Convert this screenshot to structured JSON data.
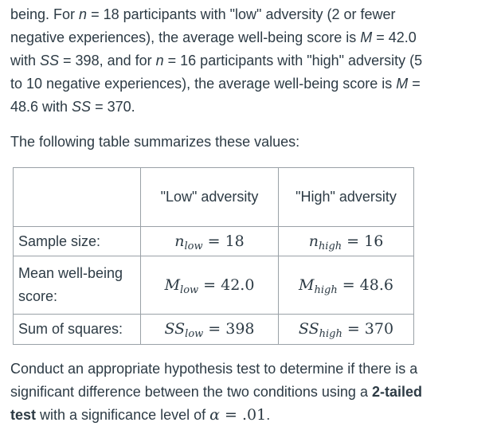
{
  "colors": {
    "text": "#2d3b45",
    "table_border": "#9aa1a7",
    "background": "#ffffff"
  },
  "intro": {
    "l1": [
      "being. For ",
      "n",
      " = 18 participants with \"low\" adversity (2 or fewer"
    ],
    "l2": [
      "negative experiences), the average well-being score is ",
      "M",
      " = 42.0"
    ],
    "l3": [
      "with ",
      "SS",
      " = 398, and for ",
      "n",
      " = 16 participants with \"high\" adversity (5"
    ],
    "l4": [
      "to 10 negative experiences), the average well-being score is ",
      "M",
      " ="
    ],
    "l5": [
      "48.6 with ",
      "SS",
      " = 370."
    ]
  },
  "table_intro": "The following table summarizes these values:",
  "table": {
    "col_headers": [
      "\"Low\" adversity",
      "\"High\" adversity"
    ],
    "rows": [
      {
        "label": "Sample size:",
        "low": {
          "var": "n",
          "sub": "low",
          "eq": "= 18"
        },
        "high": {
          "var": "n",
          "sub": "high",
          "eq": "= 16"
        }
      },
      {
        "label": "Mean well-being score:",
        "low": {
          "var": "M",
          "sub": "low",
          "eq": "= 42.0"
        },
        "high": {
          "var": "M",
          "sub": "high",
          "eq": "= 48.6"
        }
      },
      {
        "label": "Sum of squares:",
        "low": {
          "var": "SS",
          "sub": "low",
          "eq": "= 398"
        },
        "high": {
          "var": "SS",
          "sub": "high",
          "eq": "= 370"
        }
      }
    ]
  },
  "task": {
    "l1": "Conduct an appropriate hypothesis test to determine if there is a",
    "l2": [
      "significant difference between the two conditions using a ",
      "2-tailed"
    ],
    "l3": [
      "test",
      " with a significance level of ",
      "α",
      " = .01",
      "."
    ]
  }
}
